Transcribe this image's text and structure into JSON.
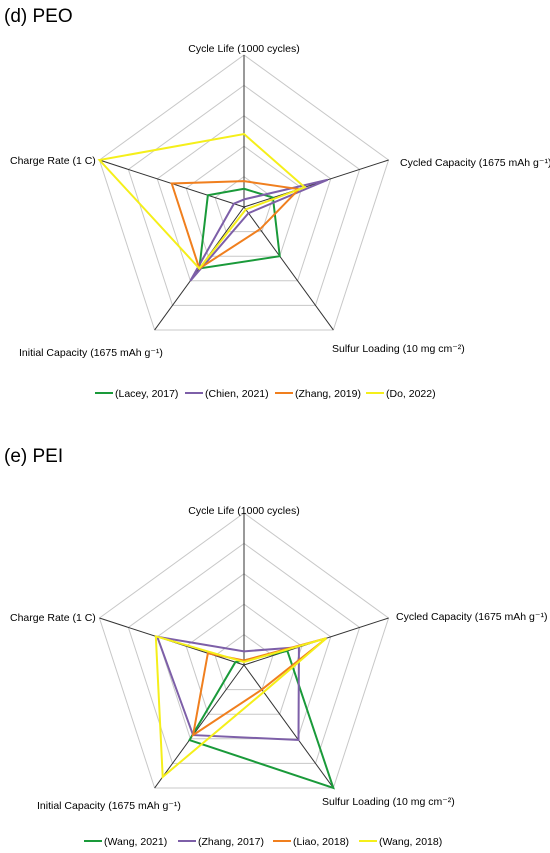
{
  "chart_data": [
    {
      "type": "radar",
      "title": "(d) PEO",
      "axes": [
        {
          "label": "Cycle Life (1000 cycles)",
          "max": 1000
        },
        {
          "label": "Cycled Capacity (1675 mAh g⁻¹)",
          "max": 1675
        },
        {
          "label": "Sulfur Loading (10 mg cm⁻²)",
          "max": 10
        },
        {
          "label": "Initial Capacity (1675 mAh g⁻¹)",
          "max": 1675
        },
        {
          "label": "Charge Rate (1 C)",
          "max": 1
        }
      ],
      "rings": 5,
      "legend_position": "bottom",
      "series": [
        {
          "name": "(Lacey, 2017)",
          "color": "#1a9a3a",
          "values": [
            0.12,
            0.2,
            0.4,
            0.5,
            0.25
          ]
        },
        {
          "name": "(Chien, 2021)",
          "color": "#7d5fa8",
          "values": [
            0.05,
            0.58,
            0.05,
            0.6,
            0.07
          ]
        },
        {
          "name": "(Zhang, 2019)",
          "color": "#f07f1e",
          "values": [
            0.17,
            0.38,
            0.18,
            0.5,
            0.5
          ]
        },
        {
          "name": "(Do, 2022)",
          "color": "#f5ef1a",
          "values": [
            0.48,
            0.42,
            0.02,
            0.5,
            1.0
          ]
        }
      ]
    },
    {
      "type": "radar",
      "title": "(e) PEI",
      "axes": [
        {
          "label": "Cycle Life (1000 cycles)",
          "max": 1000
        },
        {
          "label": "Cycled Capacity (1675 mAh g⁻¹)",
          "max": 1675
        },
        {
          "label": "Sulfur Loading (10 mg cm⁻²)",
          "max": 10
        },
        {
          "label": "Initial Capacity (1675 mAh g⁻¹)",
          "max": 1675
        },
        {
          "label": "Charge Rate (1 C)",
          "max": 1
        }
      ],
      "rings": 5,
      "legend_position": "bottom",
      "series": [
        {
          "name": "(Wang, 2021)",
          "color": "#1a9a3a",
          "values": [
            0.03,
            0.3,
            1.0,
            0.61,
            0.06
          ]
        },
        {
          "name": "(Zhang, 2017)",
          "color": "#7d5fa8",
          "values": [
            0.09,
            0.38,
            0.61,
            0.57,
            0.6
          ]
        },
        {
          "name": "(Liao, 2018)",
          "color": "#f07f1e",
          "values": [
            0.03,
            0.57,
            0.2,
            0.57,
            0.25
          ]
        },
        {
          "name": "(Wang, 2018)",
          "color": "#f5ef1a",
          "values": [
            0.02,
            0.57,
            0.22,
            0.91,
            0.61
          ]
        }
      ]
    }
  ]
}
